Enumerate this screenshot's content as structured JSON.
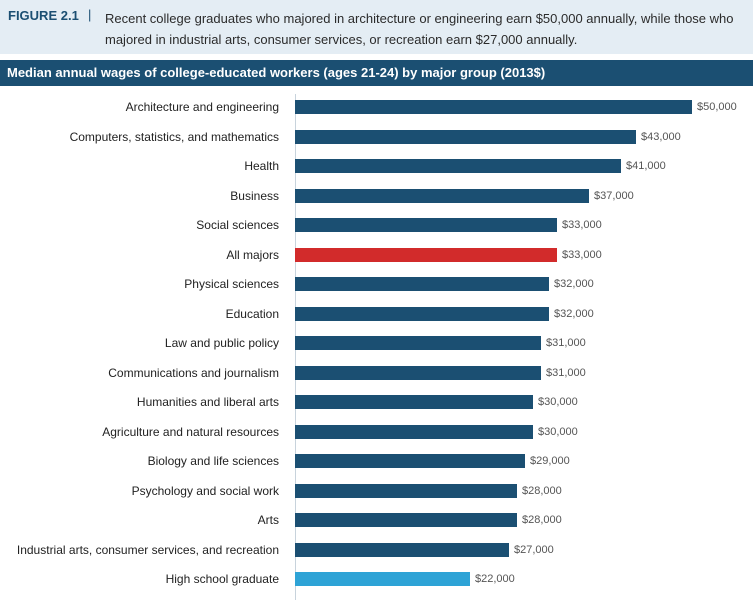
{
  "header": {
    "figure_label": "FIGURE 2.1",
    "separator": "|",
    "caption": "Recent college graduates who majored in architecture or engineering earn $50,000 annually, while those who majored in industrial arts, consumer services, or recreation earn $27,000 annually."
  },
  "chart_data": {
    "type": "bar",
    "orientation": "horizontal",
    "title": "Median annual wages of college-educated workers (ages 21-24) by major group (2013$)",
    "xlabel": "",
    "ylabel": "",
    "xlim": [
      0,
      50000
    ],
    "grid": false,
    "categories": [
      "Architecture and engineering",
      "Computers, statistics, and mathematics",
      "Health",
      "Business",
      "Social sciences",
      "All majors",
      "Physical sciences",
      "Education",
      "Law and public policy",
      "Communications and journalism",
      "Humanities and liberal arts",
      "Agriculture and natural resources",
      "Biology and life sciences",
      "Psychology and social work",
      "Arts",
      "Industrial arts, consumer services, and recreation",
      "High school graduate"
    ],
    "values": [
      50000,
      43000,
      41000,
      37000,
      33000,
      33000,
      32000,
      32000,
      31000,
      31000,
      30000,
      30000,
      29000,
      28000,
      28000,
      27000,
      22000
    ],
    "value_labels": [
      "$50,000",
      "$43,000",
      "$41,000",
      "$37,000",
      "$33,000",
      "$33,000",
      "$32,000",
      "$32,000",
      "$31,000",
      "$31,000",
      "$30,000",
      "$30,000",
      "$29,000",
      "$28,000",
      "$28,000",
      "$27,000",
      "$22,000"
    ],
    "colors": {
      "default": "#1b4f72",
      "highlight": "#d22b2b",
      "baseline": "#2ea3d6"
    },
    "highlight_category": "All majors",
    "baseline_category": "High school graduate"
  }
}
